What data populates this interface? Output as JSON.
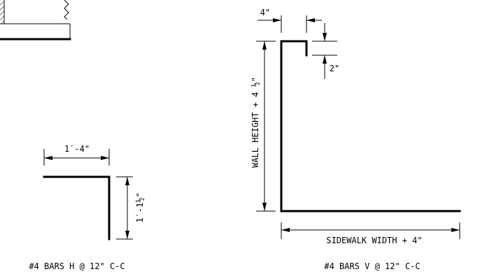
{
  "left_detail": {
    "dim_top": "1′-4\"",
    "dim_side": "1′-1½\"",
    "caption": "#4 BARS H @ 12\" C-C"
  },
  "right_detail": {
    "dim_hook_width": "4\"",
    "dim_hook_drop": "2\"",
    "dim_height": "WALL HEIGHT + 4 ½\"",
    "dim_width": "SIDEWALK WIDTH + 4\"",
    "caption": "#4 BARS V @ 12\" C-C"
  }
}
